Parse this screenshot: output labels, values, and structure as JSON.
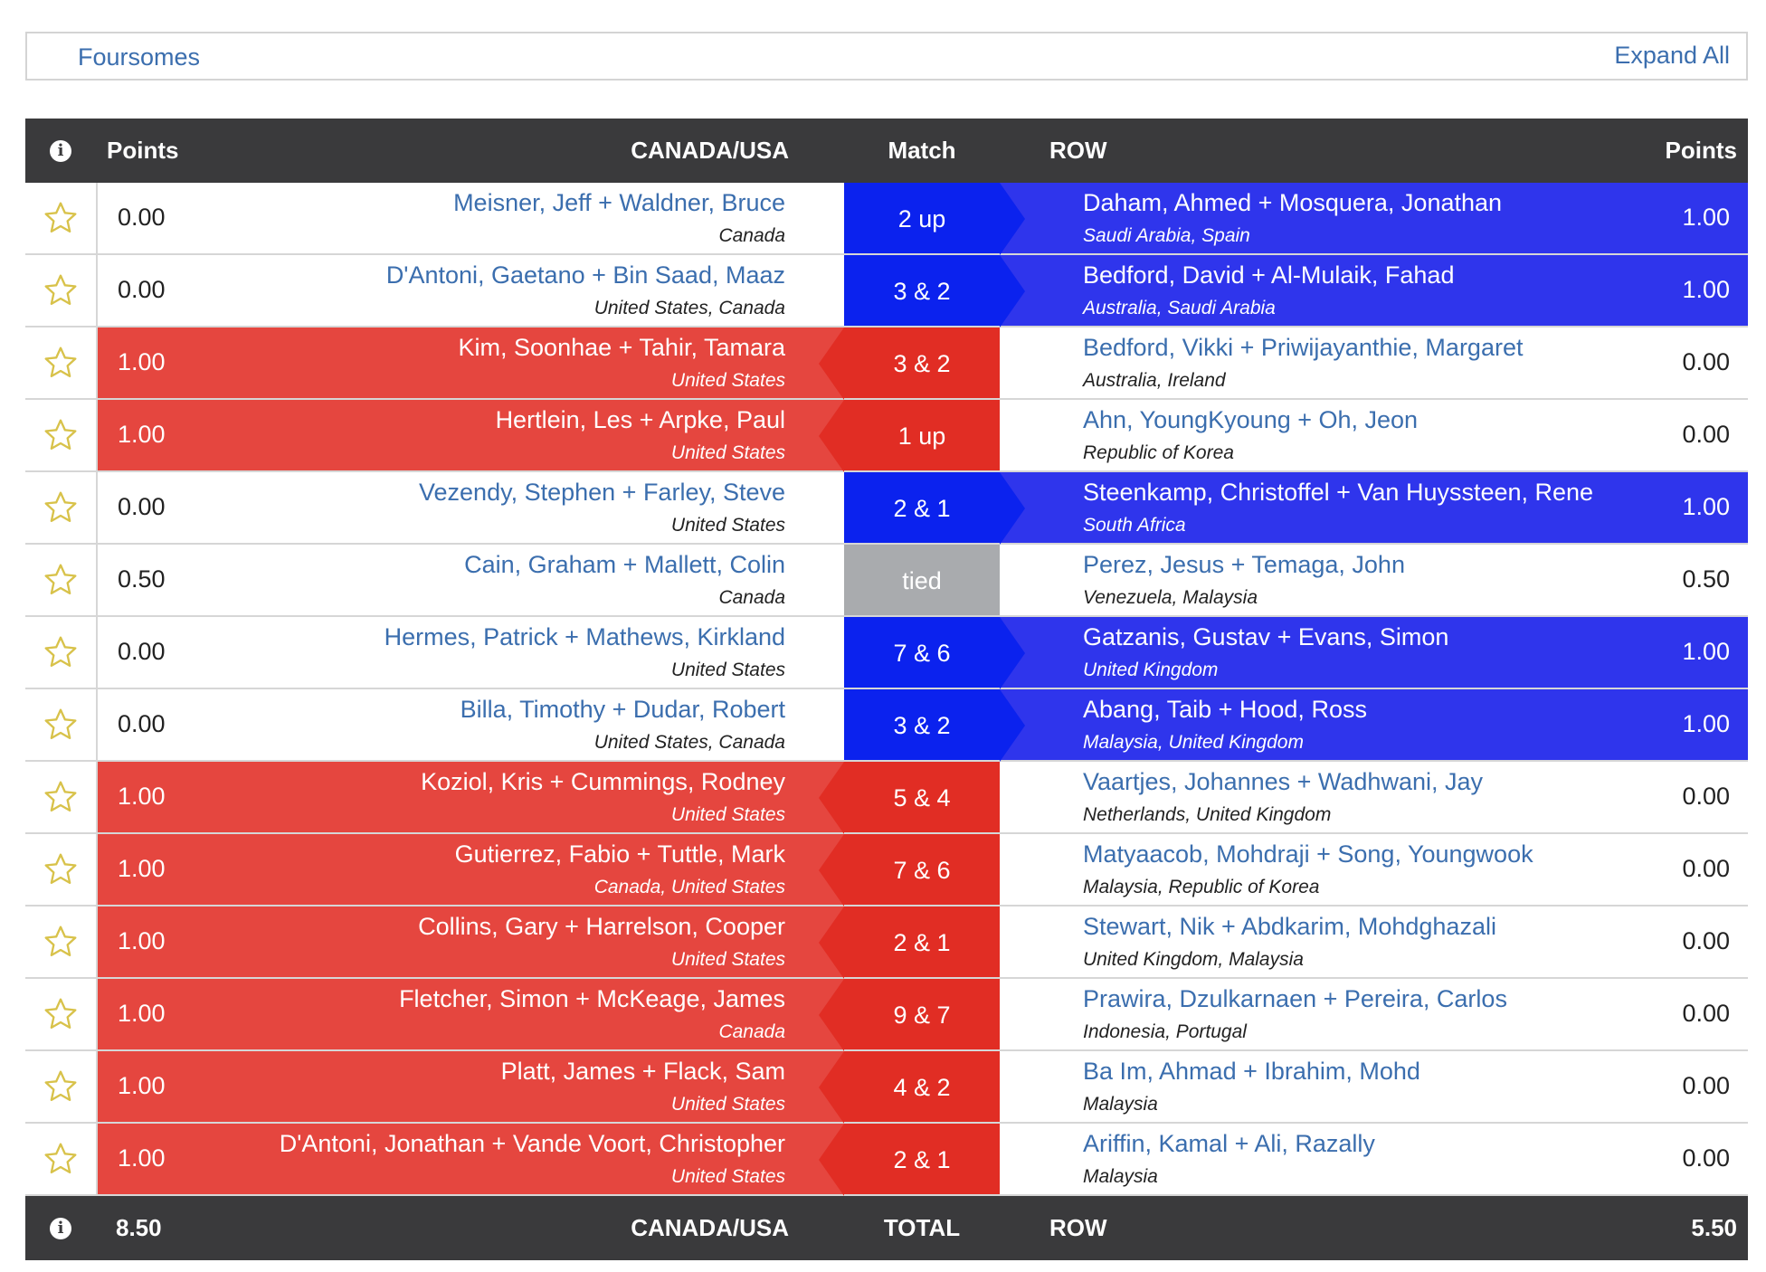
{
  "section": {
    "title": "Foursomes",
    "expand_label": "Expand All"
  },
  "header": {
    "info_icon": "i",
    "points_left": "Points",
    "team_left": "CANADA/USA",
    "match": "Match",
    "team_right": "ROW",
    "points_right": "Points"
  },
  "footer": {
    "info_icon": "i",
    "points_left": "8.50",
    "team_left": "CANADA/USA",
    "match": "TOTAL",
    "team_right": "ROW",
    "points_right": "5.50"
  },
  "colors": {
    "usa_red": "#e12d24",
    "usa_panel_red": "#e5463f",
    "row_blue": "#0b22ee",
    "row_panel_blue": "#2f35ec",
    "tie_gray": "#a9abae",
    "header_dark": "#3a3a3c",
    "link_blue": "#3b6eae",
    "star_gold": "#d8c24a"
  },
  "matches": [
    {
      "left_points": "0.00",
      "left_names": "Meisner, Jeff + Waldner, Bruce",
      "left_country": "Canada",
      "result": "2 up",
      "winner": "row",
      "right_names": "Daham, Ahmed + Mosquera, Jonathan",
      "right_country": "Saudi Arabia, Spain",
      "right_points": "1.00"
    },
    {
      "left_points": "0.00",
      "left_names": "D'Antoni, Gaetano + Bin Saad, Maaz",
      "left_country": "United States, Canada",
      "result": "3 & 2",
      "winner": "row",
      "right_names": "Bedford, David + Al-Mulaik, Fahad",
      "right_country": "Australia, Saudi Arabia",
      "right_points": "1.00"
    },
    {
      "left_points": "1.00",
      "left_names": "Kim, Soonhae + Tahir, Tamara",
      "left_country": "United States",
      "result": "3 & 2",
      "winner": "usa",
      "right_names": "Bedford, Vikki + Priwijayanthie, Margaret",
      "right_country": "Australia, Ireland",
      "right_points": "0.00"
    },
    {
      "left_points": "1.00",
      "left_names": "Hertlein, Les + Arpke, Paul",
      "left_country": "United States",
      "result": "1 up",
      "winner": "usa",
      "right_names": "Ahn, YoungKyoung + Oh, Jeon",
      "right_country": "Republic of Korea",
      "right_points": "0.00"
    },
    {
      "left_points": "0.00",
      "left_names": "Vezendy, Stephen + Farley, Steve",
      "left_country": "United States",
      "result": "2 & 1",
      "winner": "row",
      "right_names": "Steenkamp, Christoffel + Van Huyssteen, Rene",
      "right_country": "South Africa",
      "right_points": "1.00"
    },
    {
      "left_points": "0.50",
      "left_names": "Cain, Graham + Mallett, Colin",
      "left_country": "Canada",
      "result": "tied",
      "winner": "tie",
      "right_names": "Perez, Jesus + Temaga, John",
      "right_country": "Venezuela, Malaysia",
      "right_points": "0.50"
    },
    {
      "left_points": "0.00",
      "left_names": "Hermes, Patrick + Mathews, Kirkland",
      "left_country": "United States",
      "result": "7 & 6",
      "winner": "row",
      "right_names": "Gatzanis, Gustav + Evans, Simon",
      "right_country": "United Kingdom",
      "right_points": "1.00"
    },
    {
      "left_points": "0.00",
      "left_names": "Billa, Timothy + Dudar, Robert",
      "left_country": "United States, Canada",
      "result": "3 & 2",
      "winner": "row",
      "right_names": "Abang, Taib + Hood, Ross",
      "right_country": "Malaysia, United Kingdom",
      "right_points": "1.00"
    },
    {
      "left_points": "1.00",
      "left_names": "Koziol, Kris + Cummings, Rodney",
      "left_country": "United States",
      "result": "5 & 4",
      "winner": "usa",
      "right_names": "Vaartjes, Johannes + Wadhwani, Jay",
      "right_country": "Netherlands, United Kingdom",
      "right_points": "0.00"
    },
    {
      "left_points": "1.00",
      "left_names": "Gutierrez, Fabio + Tuttle, Mark",
      "left_country": "Canada, United States",
      "result": "7 & 6",
      "winner": "usa",
      "right_names": "Matyaacob, Mohdraji + Song, Youngwook",
      "right_country": "Malaysia, Republic of Korea",
      "right_points": "0.00"
    },
    {
      "left_points": "1.00",
      "left_names": "Collins, Gary + Harrelson, Cooper",
      "left_country": "United States",
      "result": "2 & 1",
      "winner": "usa",
      "right_names": "Stewart, Nik + Abdkarim, Mohdghazali",
      "right_country": "United Kingdom, Malaysia",
      "right_points": "0.00"
    },
    {
      "left_points": "1.00",
      "left_names": "Fletcher, Simon + McKeage, James",
      "left_country": "Canada",
      "result": "9 & 7",
      "winner": "usa",
      "right_names": "Prawira, Dzulkarnaen + Pereira, Carlos",
      "right_country": "Indonesia, Portugal",
      "right_points": "0.00"
    },
    {
      "left_points": "1.00",
      "left_names": "Platt, James + Flack, Sam",
      "left_country": "United States",
      "result": "4 & 2",
      "winner": "usa",
      "right_names": "Ba Im, Ahmad + Ibrahim, Mohd",
      "right_country": "Malaysia",
      "right_points": "0.00"
    },
    {
      "left_points": "1.00",
      "left_names": "D'Antoni, Jonathan + Vande Voort, Christopher",
      "left_country": "United States",
      "result": "2 & 1",
      "winner": "usa",
      "right_names": "Ariffin, Kamal + Ali, Razally",
      "right_country": "Malaysia",
      "right_points": "0.00"
    }
  ]
}
